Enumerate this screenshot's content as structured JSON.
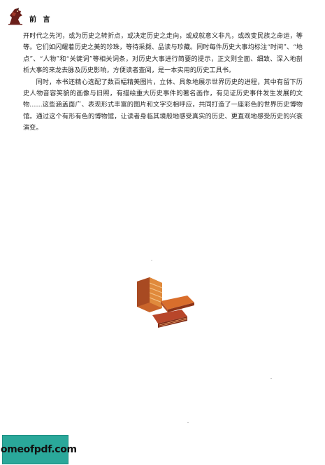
{
  "header": {
    "title": "前 言",
    "emblem_icon": "knight-emblem-icon"
  },
  "body": {
    "paragraph1": "开时代之先河，或为历史之转折点，或决定历史之走向，或成就意义非凡，或改变民族之命运，等等。它们如闪耀着历史之美的珍珠，等待采撷、品读与珍藏。同时每件历史大事均标注“时间”、“地点”、“人物”和“关键词”等相关词条，对历史大事进行简要的提示，正文则全面、细致、深入地剖析大事的来龙去脉及历史影响，方便读者查阅，是一本实用的历史工具书。",
    "paragraph2": "同时，本书还精心选配了数百幅精美图片，立体、具象地展示世界历史的进程，其中有留下历史人物音容笑貌的画像与旧照，有描绘重大历史事件的著名画作，有见证历史事件发生发展的文物……这些涵盖面广、表现形式丰富的图片和文字交相呼应，共同打造了一座彩色的世界历史博物馆。通过这个有形有色的博物馆，让读者身临其境般地感受真实的历史、更直观地感受历史的兴衰演变。"
  },
  "illustration": {
    "icon": "stacked-books-illustration-icon"
  },
  "watermark": {
    "text": "homeofpdf.com"
  },
  "colors": {
    "watermark_bg": "#2aa89a",
    "book_orange": "#d9752a",
    "book_red": "#b5472a"
  }
}
